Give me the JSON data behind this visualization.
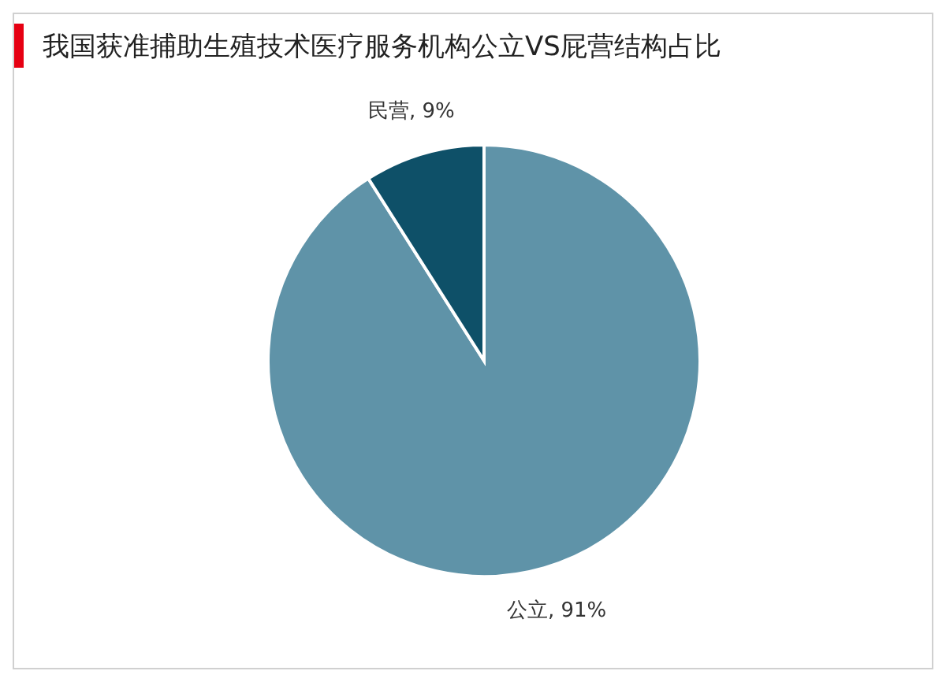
{
  "chart_data": {
    "type": "pie",
    "title": "我国获准捕助生殖技术医疗服务机构公立VS屁营结构占比",
    "categories": [
      "公立",
      "民营"
    ],
    "values": [
      91,
      9
    ],
    "colors": [
      "#5f93a8",
      "#0e5068"
    ],
    "value_labels": [
      ", 91%",
      ", 9%"
    ],
    "legend": false
  }
}
